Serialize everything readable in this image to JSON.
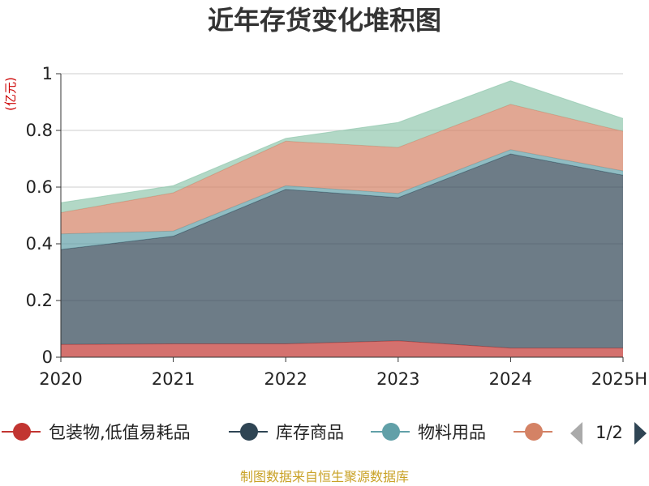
{
  "chart_data": {
    "type": "area",
    "title": "近年存货变化堆积图",
    "ylabel": "(亿元)",
    "categories": [
      "2020",
      "2021",
      "2022",
      "2023",
      "2024",
      "2025H"
    ],
    "yticks": [
      "0",
      "0.2",
      "0.4",
      "0.6",
      "0.8",
      "1"
    ],
    "ylim": [
      0,
      1
    ],
    "stacked": true,
    "grid": true,
    "series": [
      {
        "name": "包装物,低值易耗品",
        "color": "#c23531",
        "values": [
          0.045,
          0.047,
          0.047,
          0.058,
          0.032,
          0.032
        ]
      },
      {
        "name": "库存商品",
        "color": "#2f4554",
        "values": [
          0.335,
          0.38,
          0.545,
          0.505,
          0.685,
          0.61
        ]
      },
      {
        "name": "物料用品",
        "color": "#61a0a8",
        "values": [
          0.055,
          0.018,
          0.013,
          0.015,
          0.015,
          0.015
        ]
      },
      {
        "name": "",
        "color": "#d48265",
        "values": [
          0.075,
          0.135,
          0.157,
          0.162,
          0.16,
          0.14
        ]
      },
      {
        "name": "",
        "color": "#91c7ae",
        "values": [
          0.035,
          0.025,
          0.01,
          0.088,
          0.083,
          0.045
        ]
      }
    ],
    "legend": {
      "placement": "bottom",
      "visible_series": 4,
      "page": "1/2"
    }
  },
  "footer": {
    "source": "制图数据来自恒生聚源数据库"
  }
}
